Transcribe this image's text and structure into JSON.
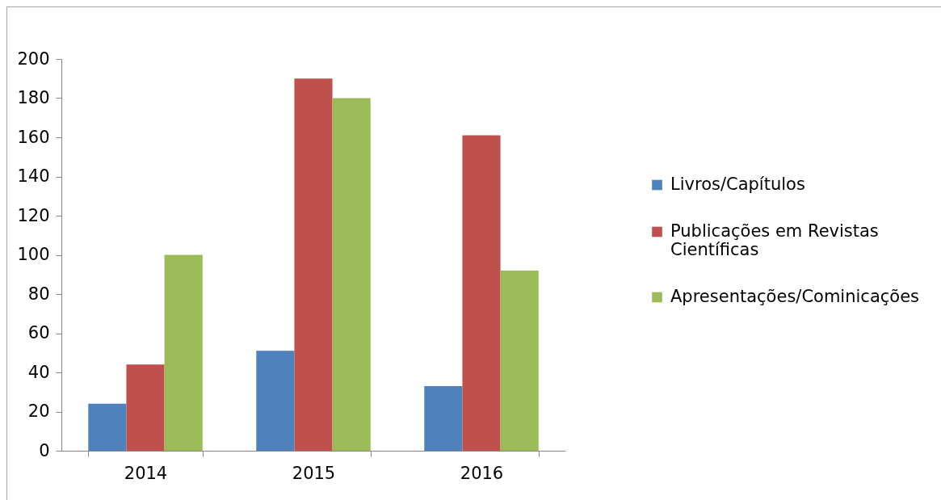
{
  "chart_data": {
    "type": "bar",
    "categories": [
      "2014",
      "2015",
      "2016"
    ],
    "series": [
      {
        "name": "Livros/Capítulos",
        "color": "#4f81bd",
        "values": [
          24,
          51,
          33
        ]
      },
      {
        "name": "Publicações em Revistas Científicas",
        "color": "#c0504d",
        "values": [
          44,
          190,
          161
        ]
      },
      {
        "name": "Apresentações/Cominicações",
        "color": "#9bbb59",
        "values": [
          100,
          180,
          92
        ]
      }
    ],
    "ylim": [
      0,
      200
    ],
    "yticks": [
      0,
      20,
      40,
      60,
      80,
      100,
      120,
      140,
      160,
      180,
      200
    ],
    "grid": false,
    "legend": "right"
  }
}
